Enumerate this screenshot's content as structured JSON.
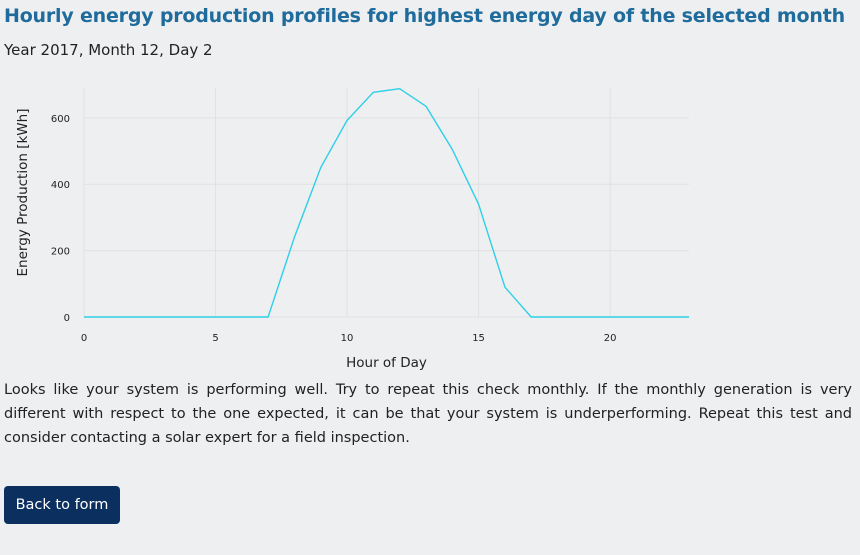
{
  "header": {
    "title": "Hourly energy production profiles for highest energy day of the selected month",
    "subtitle": "Year 2017, Month 12, Day 2"
  },
  "chart_data": {
    "type": "line",
    "xlabel": "Hour of Day",
    "ylabel": "Energy Production [kWh]",
    "xlim": [
      0,
      23
    ],
    "ylim": [
      0,
      690
    ],
    "x_ticks": [
      0,
      5,
      10,
      15,
      20
    ],
    "y_ticks": [
      0,
      200,
      400,
      600
    ],
    "grid": true,
    "legend": "none",
    "x": [
      0,
      1,
      2,
      3,
      4,
      5,
      6,
      7,
      8,
      9,
      10,
      11,
      12,
      13,
      14,
      15,
      16,
      17,
      18,
      19,
      20,
      21,
      22,
      23
    ],
    "series": [
      {
        "values": [
          0,
          0,
          0,
          0,
          0,
          0,
          0,
          0,
          240,
          450,
          592,
          677,
          688,
          635,
          505,
          340,
          90,
          0,
          0,
          0,
          0,
          0,
          0,
          0
        ],
        "color": "#2ecfe8"
      }
    ]
  },
  "message": {
    "text": "Looks like your system is performing well. Try to repeat this check monthly. If the monthly generation is very different with respect to the one expected, it can be that your system is underperforming. Repeat this test and consider contacting a solar expert for a field inspection."
  },
  "actions": {
    "back_label": "Back to form"
  },
  "colors": {
    "title": "#1e6b9c",
    "button_bg": "#0b2f5f",
    "background": "#eeeff0"
  }
}
